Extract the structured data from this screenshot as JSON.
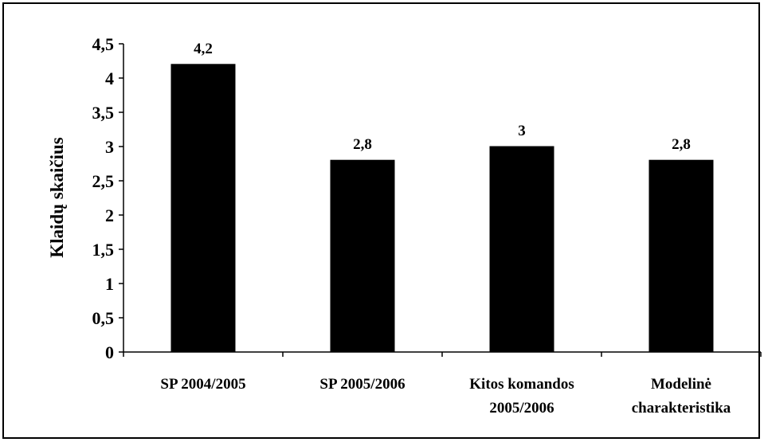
{
  "chart_data": {
    "type": "bar",
    "categories": [
      [
        "SP 2004/2005"
      ],
      [
        "SP 2005/2006"
      ],
      [
        "Kitos komandos",
        "2005/2006"
      ],
      [
        "Modelinė",
        "charakteristika"
      ]
    ],
    "values": [
      4.2,
      2.8,
      3,
      2.8
    ],
    "data_labels": [
      "4,2",
      "2,8",
      "3",
      "2,8"
    ],
    "ylabel": "Klaidų skaičius",
    "xlabel": "",
    "title": "",
    "ylim": [
      0,
      4.5
    ],
    "yticks": [
      0,
      0.5,
      1,
      1.5,
      2,
      2.5,
      3,
      3.5,
      4,
      4.5
    ],
    "ytick_labels": [
      "0",
      "0,5",
      "1",
      "1,5",
      "2",
      "2,5",
      "3",
      "3,5",
      "4",
      "4,5"
    ],
    "bar_color": "#000000",
    "grid": false,
    "legend": "none"
  }
}
